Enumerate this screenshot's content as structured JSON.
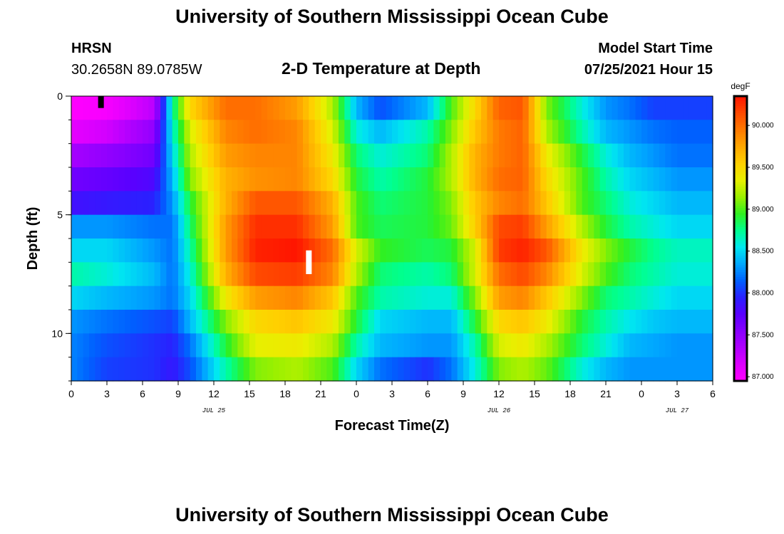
{
  "page": {
    "title": "University of Southern Mississippi Ocean Cube",
    "bottom_title": "University of Southern Mississippi Ocean Cube",
    "station": "HRSN",
    "coords": "30.2658N  89.0785W",
    "subtitle": "2-D Temperature at Depth",
    "model_start_label": "Model Start Time",
    "model_start_value": "07/25/2021 Hour 15"
  },
  "colors": {
    "palette": [
      "#ff00ff",
      "#dd00ff",
      "#b000ff",
      "#8800ff",
      "#5a00ff",
      "#2a20ff",
      "#0060ff",
      "#00a8ff",
      "#00e8f0",
      "#00ff90",
      "#30f020",
      "#9cf000",
      "#e8f000",
      "#ffd000",
      "#ffa800",
      "#ff7a00",
      "#ff4a00",
      "#ff1500"
    ],
    "station_marker": "#000000",
    "now_marker": "#ffffff"
  },
  "chart_data": {
    "type": "heatmap",
    "title": "2-D Temperature at Depth",
    "xlabel": "Forecast Time(Z)",
    "ylabel": "Depth (ft)",
    "x_hours_from_start": [
      0,
      54
    ],
    "x_tick_labels": [
      "0",
      "3",
      "6",
      "9",
      "12",
      "15",
      "18",
      "21",
      "0",
      "3",
      "6",
      "9",
      "12",
      "15",
      "18",
      "21",
      "0",
      "3",
      "6"
    ],
    "date_labels": [
      {
        "label": "JUL 25",
        "hour": 12
      },
      {
        "label": "JUL 26",
        "hour": 36
      },
      {
        "label": "JUL 27",
        "hour": 51
      }
    ],
    "y_range": [
      0,
      12
    ],
    "y_ticks": [
      0,
      5,
      10
    ],
    "y_minor_step": 1,
    "depth_levels": 12,
    "colorbar": {
      "unit": "degF",
      "range": [
        86.95,
        90.35
      ],
      "tick_labels": [
        "87.000",
        "87.500",
        "88.000",
        "88.500",
        "89.000",
        "89.500",
        "90.000"
      ],
      "tick_values": [
        87.0,
        87.5,
        88.0,
        88.5,
        89.0,
        89.5,
        90.0
      ]
    },
    "markers": [
      {
        "name": "model-start-marker",
        "hour": 2.5,
        "depth": [
          0,
          0.5
        ],
        "color": "#000000"
      },
      {
        "name": "current-time-marker",
        "hour": 20,
        "depth": [
          6.5,
          7.5
        ],
        "color": "#ffffff"
      }
    ],
    "key_times": [
      0,
      3,
      7,
      8.5,
      10,
      13,
      15.5,
      19,
      22,
      24,
      26,
      30,
      32,
      34,
      36,
      38,
      40,
      43,
      45,
      47,
      49,
      51,
      54
    ],
    "temperatures": [
      [
        86.95,
        87.0,
        87.3,
        88.7,
        89.5,
        90.0,
        90.0,
        89.8,
        89.2,
        88.4,
        88.1,
        88.4,
        89.0,
        89.5,
        90.05,
        90.1,
        89.1,
        88.6,
        88.3,
        88.2,
        88.05,
        88.05,
        88.05
      ],
      [
        87.1,
        87.2,
        87.5,
        88.6,
        89.3,
        89.9,
        90.0,
        89.9,
        89.3,
        88.6,
        88.4,
        88.7,
        89.1,
        89.6,
        89.95,
        90.05,
        89.2,
        88.7,
        88.4,
        88.3,
        88.2,
        88.15,
        88.15
      ],
      [
        87.4,
        87.5,
        87.65,
        88.5,
        89.2,
        89.8,
        89.9,
        89.9,
        89.4,
        88.8,
        88.6,
        88.8,
        89.2,
        89.7,
        89.95,
        90.05,
        89.4,
        88.9,
        88.6,
        88.4,
        88.3,
        88.2,
        88.2
      ],
      [
        87.65,
        87.7,
        87.8,
        88.4,
        89.1,
        89.7,
        89.85,
        89.9,
        89.5,
        88.9,
        88.7,
        88.9,
        89.2,
        89.7,
        90.0,
        90.05,
        89.5,
        89.0,
        88.7,
        88.5,
        88.4,
        88.3,
        88.3
      ],
      [
        87.85,
        87.9,
        87.95,
        88.3,
        88.9,
        89.7,
        90.1,
        90.1,
        89.7,
        89.0,
        88.8,
        88.9,
        89.1,
        89.6,
        89.9,
        90.0,
        89.6,
        89.0,
        88.8,
        88.6,
        88.5,
        88.4,
        88.4
      ],
      [
        88.3,
        88.3,
        88.2,
        88.2,
        88.8,
        89.8,
        90.25,
        90.25,
        89.8,
        89.0,
        88.85,
        88.9,
        89.05,
        89.55,
        90.15,
        90.2,
        89.8,
        89.2,
        88.9,
        88.7,
        88.6,
        88.5,
        88.5
      ],
      [
        88.5,
        88.5,
        88.3,
        88.2,
        88.7,
        89.8,
        90.3,
        90.35,
        90.0,
        89.3,
        88.95,
        88.85,
        88.9,
        89.3,
        90.2,
        90.3,
        90.1,
        89.4,
        89.1,
        88.9,
        88.75,
        88.65,
        88.65
      ],
      [
        88.7,
        88.6,
        88.4,
        88.2,
        88.6,
        89.7,
        90.15,
        90.2,
        89.9,
        89.2,
        88.8,
        88.7,
        88.8,
        89.3,
        90.0,
        90.15,
        89.9,
        89.3,
        89.0,
        88.8,
        88.7,
        88.6,
        88.6
      ],
      [
        88.5,
        88.4,
        88.3,
        88.2,
        88.5,
        89.4,
        89.8,
        89.9,
        89.6,
        89.0,
        88.7,
        88.6,
        88.6,
        89.1,
        89.8,
        89.9,
        89.6,
        89.1,
        88.8,
        88.7,
        88.6,
        88.5,
        88.5
      ],
      [
        88.3,
        88.2,
        88.1,
        88.05,
        88.4,
        89.1,
        89.5,
        89.6,
        89.4,
        88.9,
        88.5,
        88.4,
        88.4,
        88.9,
        89.5,
        89.6,
        89.4,
        88.9,
        88.7,
        88.55,
        88.45,
        88.4,
        88.4
      ],
      [
        88.25,
        88.1,
        88.0,
        87.95,
        88.2,
        88.9,
        89.35,
        89.4,
        89.2,
        88.7,
        88.4,
        88.3,
        88.3,
        88.7,
        89.3,
        89.4,
        89.2,
        88.8,
        88.6,
        88.4,
        88.35,
        88.3,
        88.3
      ],
      [
        88.25,
        88.05,
        88.0,
        87.9,
        88.1,
        88.7,
        89.1,
        89.2,
        89.0,
        88.5,
        88.2,
        88.0,
        88.2,
        88.6,
        89.1,
        89.2,
        89.05,
        88.6,
        88.4,
        88.3,
        88.3,
        88.3,
        88.3
      ]
    ]
  }
}
